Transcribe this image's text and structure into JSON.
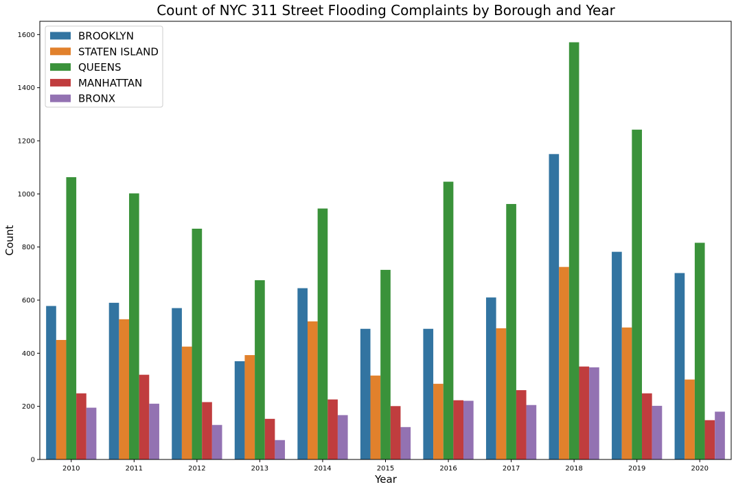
{
  "chart_data": {
    "type": "bar",
    "title": "Count of NYC 311 Street Flooding Complaints by Borough and Year",
    "xlabel": "Year",
    "ylabel": "Count",
    "ylim": [
      0,
      1650
    ],
    "yticks": [
      0,
      200,
      400,
      600,
      800,
      1000,
      1200,
      1400,
      1600
    ],
    "grid": false,
    "legend_position": "top-left",
    "categories": [
      "2010",
      "2011",
      "2012",
      "2013",
      "2014",
      "2015",
      "2016",
      "2017",
      "2018",
      "2019",
      "2020"
    ],
    "series": [
      {
        "name": "BROOKLYN",
        "color": "#3274a1",
        "values": [
          578,
          590,
          570,
          370,
          645,
          492,
          492,
          610,
          1150,
          782,
          702
        ]
      },
      {
        "name": "STATEN ISLAND",
        "color": "#e1812c",
        "values": [
          450,
          528,
          425,
          393,
          520,
          316,
          285,
          494,
          725,
          497,
          301
        ]
      },
      {
        "name": "QUEENS",
        "color": "#3a923a",
        "values": [
          1063,
          1002,
          869,
          675,
          945,
          714,
          1046,
          962,
          1571,
          1242,
          816
        ]
      },
      {
        "name": "MANHATTAN",
        "color": "#c03d3e",
        "values": [
          249,
          319,
          216,
          153,
          226,
          201,
          223,
          261,
          350,
          249,
          148
        ]
      },
      {
        "name": "BRONX",
        "color": "#9372b2",
        "values": [
          195,
          210,
          130,
          73,
          167,
          122,
          221,
          205,
          347,
          202,
          180
        ]
      }
    ]
  }
}
